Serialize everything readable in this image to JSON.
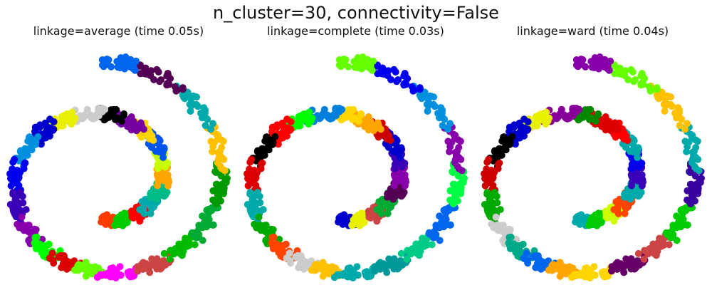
{
  "suptitle": "n_cluster=30, connectivity=False",
  "chart_data": [
    {
      "type": "scatter",
      "title": "linkage=average (time 0.05s)",
      "grid": false,
      "axes_visible": false,
      "xlim": [
        -3.2,
        3.2
      ],
      "ylim": [
        -3.0,
        3.0
      ],
      "colors": [
        "#ff3c00",
        "#00cc00",
        "#ff0000",
        "#00aaaa",
        "#00bb88",
        "#ffa500",
        "#c8ff00",
        "#0055ee",
        "#ffd500",
        "#7700a0",
        "#000000",
        "#cccccc",
        "#e8f000",
        "#0000cc",
        "#0090dd",
        "#0000ee",
        "#3a00b8",
        "#8800aa",
        "#00ff00",
        "#dd0000",
        "#66ff00",
        "#ff00ff",
        "#cc4444",
        "#00bb00",
        "#00aa33",
        "#009900",
        "#ffc000",
        "#00aaaa",
        "#550055",
        "#0066ee"
      ]
    },
    {
      "type": "scatter",
      "title": "linkage=complete (time 0.03s)",
      "grid": false,
      "axes_visible": false,
      "xlim": [
        -3.2,
        3.2
      ],
      "ylim": [
        -3.0,
        3.0
      ],
      "colors": [
        "#0000cc",
        "#e8f000",
        "#cc4444",
        "#00aa33",
        "#550055",
        "#8800aa",
        "#3a00b8",
        "#0000cc",
        "#cc0000",
        "#ffa500",
        "#ffd500",
        "#0080dd",
        "#00ff00",
        "#ff0000",
        "#000000",
        "#dd0000",
        "#00aaaa",
        "#00aa00",
        "#ff4400",
        "#cccccc",
        "#ffc000",
        "#00aaaa",
        "#009999",
        "#00cc88",
        "#0066ee",
        "#00ff44",
        "#8800aa",
        "#0090dd",
        "#0000ee",
        "#66ff00"
      ]
    },
    {
      "type": "scatter",
      "title": "linkage=ward (time 0.04s)",
      "grid": false,
      "axes_visible": false,
      "xlim": [
        -3.2,
        3.2
      ],
      "ylim": [
        -3.0,
        3.0
      ],
      "colors": [
        "#00aaaa",
        "#00cc00",
        "#ccff00",
        "#ff4400",
        "#00aaaa",
        "#3a00b8",
        "#0000ee",
        "#00aaaa",
        "#ff0000",
        "#dd0000",
        "#008800",
        "#880099",
        "#e8f000",
        "#0000cc",
        "#000000",
        "#cc0000",
        "#00aa00",
        "#cccccc",
        "#00aa88",
        "#0066ee",
        "#ffa500",
        "#ffd500",
        "#660066",
        "#cc4444",
        "#00cc00",
        "#3a00a0",
        "#00aaaa",
        "#ffc000",
        "#66ff00",
        "#8800aa"
      ]
    }
  ]
}
